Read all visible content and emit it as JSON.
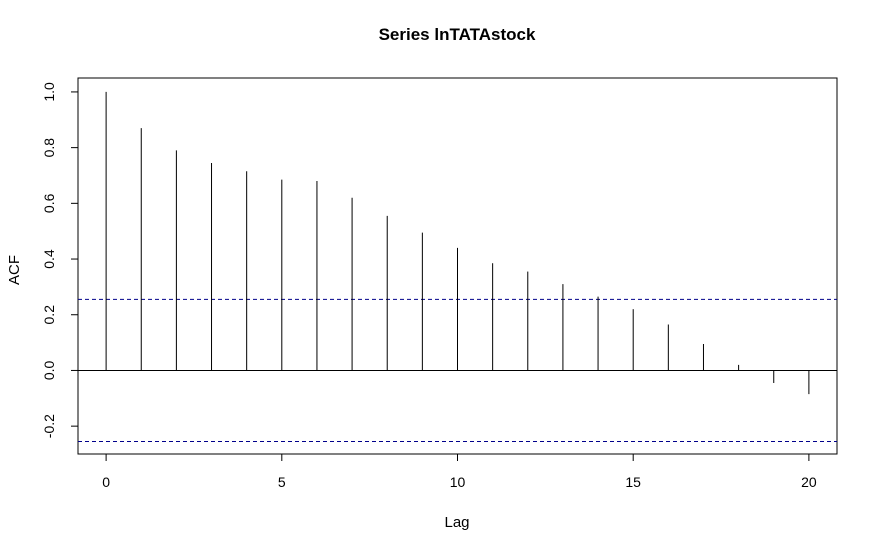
{
  "chart_data": {
    "type": "bar",
    "title": "Series  lnTATAstock",
    "xlabel": "Lag",
    "ylabel": "ACF",
    "x": [
      0,
      1,
      2,
      3,
      4,
      5,
      6,
      7,
      8,
      9,
      10,
      11,
      12,
      13,
      14,
      15,
      16,
      17,
      18,
      19,
      20
    ],
    "values": [
      1.0,
      0.87,
      0.79,
      0.745,
      0.715,
      0.685,
      0.68,
      0.62,
      0.555,
      0.495,
      0.44,
      0.385,
      0.355,
      0.31,
      0.265,
      0.22,
      0.165,
      0.095,
      0.02,
      -0.045,
      -0.085
    ],
    "xlim": [
      -0.8,
      20.8
    ],
    "ylim": [
      -0.3,
      1.05
    ],
    "xticks": [
      0,
      5,
      10,
      15,
      20
    ],
    "yticks": [
      -0.2,
      0.0,
      0.2,
      0.4,
      0.6,
      0.8,
      1.0
    ],
    "xtick_labels": [
      "0",
      "5",
      "10",
      "15",
      "20"
    ],
    "ytick_labels": [
      "-0.2",
      "0.0",
      "0.2",
      "0.4",
      "0.6",
      "0.8",
      "1.0"
    ],
    "confidence_bound": 0.255,
    "bound_color": "#00008B",
    "bar_color": "#000000"
  }
}
